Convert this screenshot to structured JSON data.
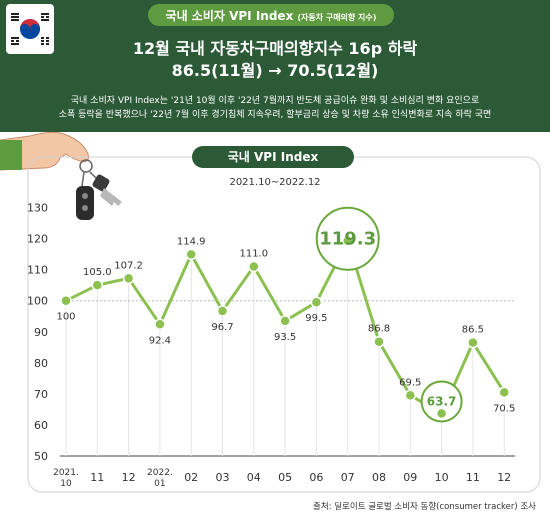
{
  "header": {
    "badge_title": "국내 소비자 VPI Index",
    "badge_subtitle": "(자동차 구매의향 지수)",
    "headline_line1": "12월 국내 자동차구매의향지수 16p 하락",
    "headline_line2": "86.5(11월) → 70.5(12월)",
    "description_line1": "국내 소비자 VPI Index는 '21년 10월 이후 '22년 7월까지 반도체 공급이슈 완화 및 소비심리 변화 요인으로",
    "description_line2": "소폭 등락을 반복했으나 '22년 7월 이후 경기침체 지속우려, 할부금리 상승 및 차량 소유 인식변화로 지속 하락 국면"
  },
  "chart_title": "국내 VPI Index",
  "period": "2021.10~2022.12",
  "source": "출처: 딜로이트 글로벌 소비자 동향(consumer tracker) 조사",
  "colors": {
    "header_bg": "#2c5a37",
    "accent_green": "#5e9a3f",
    "line": "#8cc152",
    "highlight": "#6aa83c",
    "flag_red": "#cd2e3a",
    "flag_blue": "#0047a0"
  },
  "chart_data": {
    "type": "line",
    "title": "국내 VPI Index",
    "categories": [
      [
        "2021.",
        "10"
      ],
      [
        "11"
      ],
      [
        "12"
      ],
      [
        "2022.",
        "01"
      ],
      [
        "02"
      ],
      [
        "03"
      ],
      [
        "04"
      ],
      [
        "05"
      ],
      [
        "06"
      ],
      [
        "07"
      ],
      [
        "08"
      ],
      [
        "09"
      ],
      [
        "10"
      ],
      [
        "11"
      ],
      [
        "12"
      ]
    ],
    "values": [
      100,
      105.0,
      107.2,
      92.4,
      114.9,
      96.7,
      111.0,
      93.5,
      99.5,
      119.3,
      86.8,
      69.5,
      63.7,
      86.5,
      70.5
    ],
    "value_labels": [
      "100",
      "105.0",
      "107.2",
      "92.4",
      "114.9",
      "96.7",
      "111.0",
      "93.5",
      "99.5",
      "119.3",
      "86.8",
      "69.5",
      "63.7",
      "86.5",
      "70.5"
    ],
    "label_position": [
      "below",
      "above",
      "above",
      "below",
      "above",
      "below",
      "above",
      "below",
      "below",
      "highlight",
      "above",
      "above",
      "highlight",
      "above",
      "below"
    ],
    "highlight_indices": [
      9,
      12
    ],
    "reference_line": 100,
    "yticks": [
      50,
      60,
      70,
      80,
      90,
      100,
      110,
      120,
      130
    ],
    "ylim": [
      50,
      130
    ],
    "legend": "none",
    "grid": false
  }
}
